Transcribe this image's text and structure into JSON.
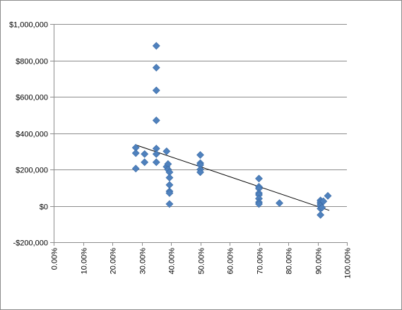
{
  "chart_data": {
    "type": "scatter",
    "title": "",
    "xlabel": "",
    "ylabel": "",
    "xlim": [
      0,
      1
    ],
    "ylim": [
      -200000,
      1000000
    ],
    "x_ticks": [
      {
        "value": 0.0,
        "label": "0.00%"
      },
      {
        "value": 0.1,
        "label": "10.00%"
      },
      {
        "value": 0.2,
        "label": "20.00%"
      },
      {
        "value": 0.3,
        "label": "30.00%"
      },
      {
        "value": 0.4,
        "label": "40.00%"
      },
      {
        "value": 0.5,
        "label": "50.00%"
      },
      {
        "value": 0.6,
        "label": "60.00%"
      },
      {
        "value": 0.7,
        "label": "70.00%"
      },
      {
        "value": 0.8,
        "label": "80.00%"
      },
      {
        "value": 0.9,
        "label": "90.00%"
      },
      {
        "value": 1.0,
        "label": "100.00%"
      }
    ],
    "y_ticks": [
      {
        "value": 1000000,
        "label": "$1,000,000"
      },
      {
        "value": 800000,
        "label": "$800,000"
      },
      {
        "value": 600000,
        "label": "$600,000"
      },
      {
        "value": 400000,
        "label": "$400,000"
      },
      {
        "value": 200000,
        "label": "$200,000"
      },
      {
        "value": 0,
        "label": "$0"
      },
      {
        "value": -200000,
        "label": "-$200,000"
      }
    ],
    "grid": "horizontal",
    "legend": "none",
    "marker": "diamond",
    "marker_color": "#4f81bd",
    "trendline": {
      "type": "linear",
      "color": "#000000",
      "x": [
        0.28,
        0.94
      ],
      "y": [
        335000,
        -25000
      ]
    },
    "series": [
      {
        "points": [
          {
            "x": 0.28,
            "y": 320000
          },
          {
            "x": 0.28,
            "y": 290000
          },
          {
            "x": 0.28,
            "y": 205000
          },
          {
            "x": 0.31,
            "y": 285000
          },
          {
            "x": 0.31,
            "y": 240000
          },
          {
            "x": 0.35,
            "y": 880000
          },
          {
            "x": 0.35,
            "y": 760000
          },
          {
            "x": 0.35,
            "y": 635000
          },
          {
            "x": 0.35,
            "y": 470000
          },
          {
            "x": 0.35,
            "y": 315000
          },
          {
            "x": 0.35,
            "y": 285000
          },
          {
            "x": 0.35,
            "y": 240000
          },
          {
            "x": 0.385,
            "y": 300000
          },
          {
            "x": 0.385,
            "y": 215000
          },
          {
            "x": 0.39,
            "y": 230000
          },
          {
            "x": 0.39,
            "y": 200000
          },
          {
            "x": 0.395,
            "y": 185000
          },
          {
            "x": 0.395,
            "y": 155000
          },
          {
            "x": 0.395,
            "y": 115000
          },
          {
            "x": 0.395,
            "y": 80000
          },
          {
            "x": 0.395,
            "y": 70000
          },
          {
            "x": 0.395,
            "y": 10000
          },
          {
            "x": 0.5,
            "y": 280000
          },
          {
            "x": 0.5,
            "y": 235000
          },
          {
            "x": 0.5,
            "y": 225000
          },
          {
            "x": 0.5,
            "y": 200000
          },
          {
            "x": 0.5,
            "y": 185000
          },
          {
            "x": 0.7,
            "y": 150000
          },
          {
            "x": 0.7,
            "y": 105000
          },
          {
            "x": 0.7,
            "y": 95000
          },
          {
            "x": 0.7,
            "y": 70000
          },
          {
            "x": 0.7,
            "y": 60000
          },
          {
            "x": 0.7,
            "y": 40000
          },
          {
            "x": 0.7,
            "y": 20000
          },
          {
            "x": 0.7,
            "y": 10000
          },
          {
            "x": 0.77,
            "y": 15000
          },
          {
            "x": 0.91,
            "y": 30000
          },
          {
            "x": 0.91,
            "y": 20000
          },
          {
            "x": 0.91,
            "y": 10000
          },
          {
            "x": 0.91,
            "y": 0
          },
          {
            "x": 0.91,
            "y": -15000
          },
          {
            "x": 0.91,
            "y": -50000
          },
          {
            "x": 0.92,
            "y": 25000
          },
          {
            "x": 0.915,
            "y": -10000
          },
          {
            "x": 0.935,
            "y": 55000
          }
        ]
      }
    ]
  }
}
